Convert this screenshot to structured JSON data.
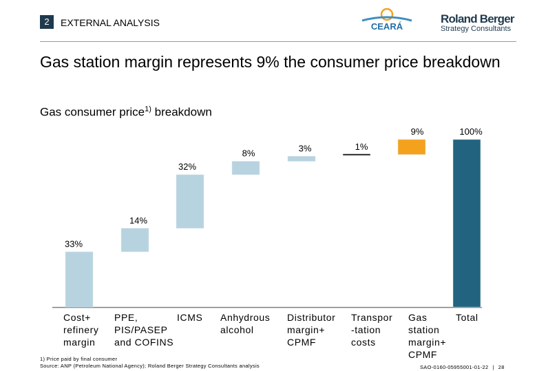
{
  "header": {
    "section_number": "2",
    "section_title": "EXTERNAL ANALYSIS",
    "logo_ceara_text": "CEARÁ",
    "logo_rb_name": "Roland Berger",
    "logo_rb_sub": "Strategy Consultants"
  },
  "headline": "Gas station margin represents 9% the consumer price breakdown",
  "subtitle": {
    "text": "Gas consumer price",
    "sup": "1)",
    "suffix": " breakdown"
  },
  "colors": {
    "light_blue": "#b8d3e0",
    "gas_station": "#f4a21d",
    "total": "#22647f",
    "axis": "#7f7f7f",
    "section_box": "#1f3a4d"
  },
  "chart_data": {
    "type": "waterfall",
    "title": "Gas consumer price breakdown",
    "unit": "%",
    "ylim": [
      0,
      100
    ],
    "categories": [
      [
        "Cost+",
        "refinery",
        "margin"
      ],
      [
        "PPE,",
        "PIS/PASEP",
        "and COFINS"
      ],
      [
        "ICMS"
      ],
      [
        "Anhydrous",
        "alcohol"
      ],
      [
        "Distributor",
        "margin+",
        "CPMF"
      ],
      [
        "Transpor",
        "-tation",
        "costs"
      ],
      [
        "Gas",
        "station",
        "margin+",
        "CPMF"
      ],
      [
        "Total"
      ]
    ],
    "values": [
      33,
      14,
      32,
      8,
      3,
      1,
      9,
      100
    ],
    "value_labels": [
      "33%",
      "14%",
      "32%",
      "8%",
      "3%",
      "1%",
      "9%",
      "100%"
    ],
    "kinds": [
      "step",
      "step",
      "step",
      "step",
      "step",
      "step",
      "highlight",
      "total"
    ]
  },
  "footer": {
    "footnote": "1) Price paid by final consumer",
    "source": "Source: ANP (Petroleum National Agency); Roland Berger Strategy Consultants analysis",
    "doc_code": "SAO-0160-05955001-01-22",
    "page_number": "28"
  }
}
